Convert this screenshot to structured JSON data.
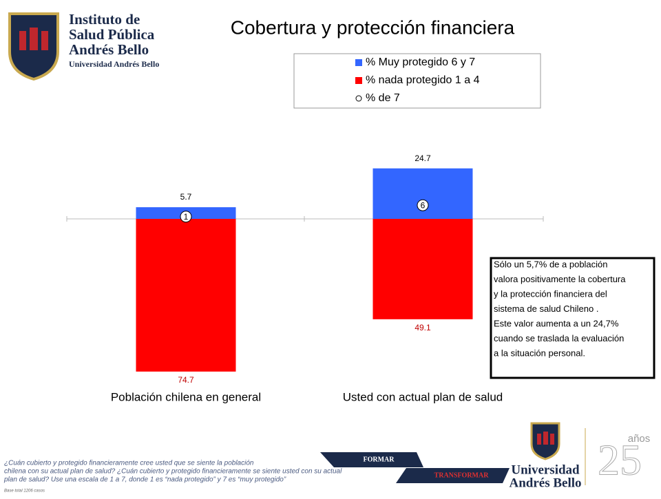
{
  "header": {
    "logo": [
      "Instituto de",
      "Salud Pública",
      "Andrés Bello"
    ],
    "logo_sub": "Universidad Andrés Bello"
  },
  "chart_data": {
    "type": "bar",
    "title": "Cobertura y protección financiera",
    "categories": [
      "Población chilena en general",
      "Usted con actual plan de salud"
    ],
    "series": [
      {
        "name": "% Muy protegido 6 y 7",
        "color": "#3366ff",
        "values": [
          5.7,
          24.7
        ]
      },
      {
        "name": "% nada protegido 1 a 4",
        "color": "#ff0000",
        "values": [
          74.7,
          49.1
        ]
      },
      {
        "name": "% de 7",
        "color": "#ffffff",
        "values": [
          1,
          6
        ]
      }
    ]
  },
  "note": [
    "Sólo un 5,7% de a población",
    "valora positivamente la cobertura",
    "y la protección financiera del",
    "sistema de salud Chileno .",
    "Este valor aumenta a un 24,7%",
    "cuando se traslada la evaluación",
    "a la  situación personal."
  ],
  "footnote": [
    "¿Cuán cubierto y protegido financieramente cree usted que se siente la población",
    "chilena con su actual plan de salud? ¿Cuán cubierto y protegido financieramente se siente usted con su actual",
    "plan de salud?  Use una escala de 1 a 7, donde 1 es “nada protegido” y 7 es “muy protegido”"
  ],
  "base": "Base total 1206  casos",
  "footer": {
    "formar": "FORMAR",
    "transformar": "TRANSFORMAR",
    "university": [
      "Universidad",
      "Andrés Bello"
    ],
    "anos": "años"
  }
}
